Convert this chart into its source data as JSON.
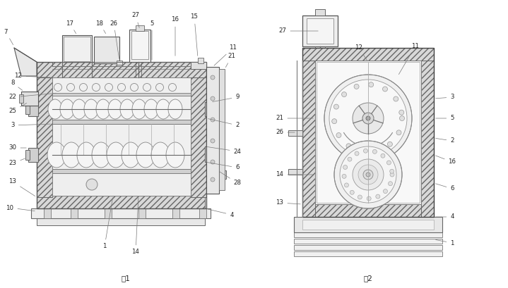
{
  "fig_width": 7.19,
  "fig_height": 4.09,
  "dpi": 100,
  "bg_color": "#ffffff",
  "lc": "#777777",
  "dc": "#444444",
  "hc": "#bbbbbb",
  "fig1_label": "图1",
  "fig2_label": "图2"
}
